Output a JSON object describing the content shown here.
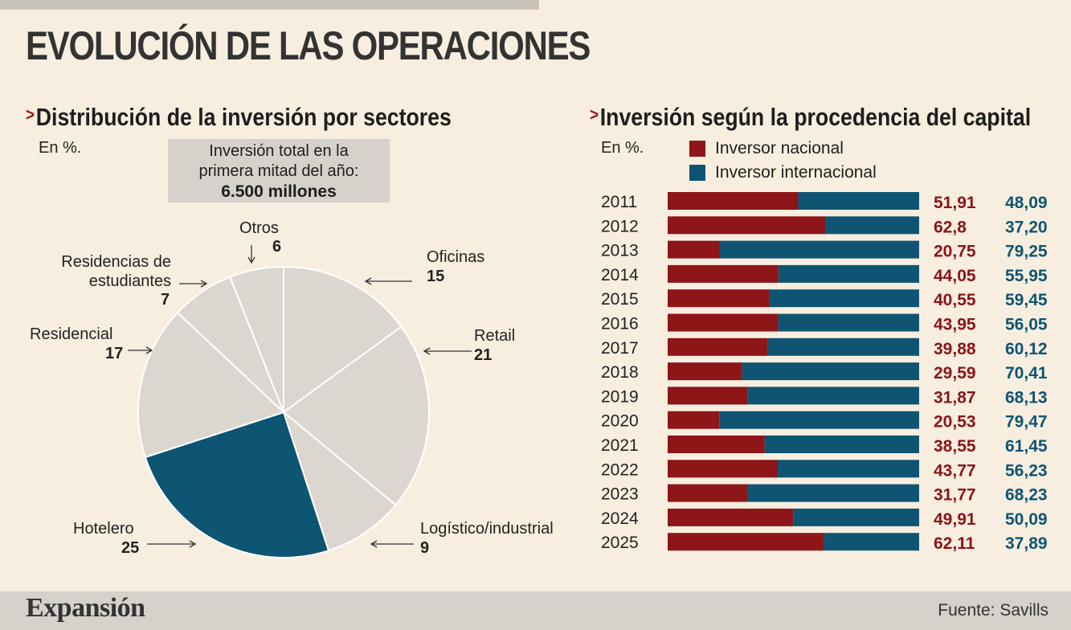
{
  "title": "EVOLUCIÓN DE LAS OPERACIONES",
  "colors": {
    "nacional": "#8e1518",
    "internacional": "#0f5573",
    "pie_default": "#dcd6d0",
    "pie_highlight": "#0d5572",
    "background": "#f8eee0"
  },
  "left": {
    "title": "Distribución de la inversión por sectores",
    "unit": "En %.",
    "total_line1": "Inversión total en la",
    "total_line2": "primera mitad del año:",
    "total_value": "6.500 millones"
  },
  "right": {
    "title": "Inversión según la procedencia del capital",
    "unit": "En %.",
    "legend_nacional": "Inversor nacional",
    "legend_internacional": "Inversor internacional"
  },
  "chart_data": [
    {
      "type": "pie",
      "title": "Distribución de la inversión por sectores",
      "slices": [
        {
          "label": "Oficinas",
          "value": 15
        },
        {
          "label": "Retail",
          "value": 21
        },
        {
          "label": "Logístico/industrial",
          "value": 9
        },
        {
          "label": "Hotelero",
          "value": 25,
          "highlight": true
        },
        {
          "label": "Residencial",
          "value": 17
        },
        {
          "label": "Residencias de estudiantes",
          "value": 7
        },
        {
          "label": "Otros",
          "value": 6
        }
      ]
    },
    {
      "type": "bar",
      "orientation": "horizontal",
      "stacked": true,
      "title": "Inversión según la procedencia del capital",
      "categories": [
        "2011",
        "2012",
        "2013",
        "2014",
        "2015",
        "2016",
        "2017",
        "2018",
        "2019",
        "2020",
        "2021",
        "2022",
        "2023",
        "2024",
        "2025"
      ],
      "series": [
        {
          "name": "Inversor nacional",
          "values": [
            51.91,
            62.8,
            20.75,
            44.05,
            40.55,
            43.95,
            39.88,
            29.59,
            31.87,
            20.53,
            38.55,
            43.77,
            31.77,
            49.91,
            62.11
          ],
          "labels": [
            "51,91",
            "62,8",
            "20,75",
            "44,05",
            "40,55",
            "43,95",
            "39,88",
            "29,59",
            "31,87",
            "20,53",
            "38,55",
            "43,77",
            "31,77",
            "49,91",
            "62,11"
          ]
        },
        {
          "name": "Inversor internacional",
          "values": [
            48.09,
            37.2,
            79.25,
            55.95,
            59.45,
            56.05,
            60.12,
            70.41,
            68.13,
            79.47,
            61.45,
            56.23,
            68.23,
            50.09,
            37.89
          ],
          "labels": [
            "48,09",
            "37,20",
            "79,25",
            "55,95",
            "59,45",
            "56,05",
            "60,12",
            "70,41",
            "68,13",
            "79,47",
            "61,45",
            "56,23",
            "68,23",
            "50,09",
            "37,89"
          ]
        }
      ],
      "xlim": [
        0,
        100
      ]
    }
  ],
  "footer": {
    "brand": "Expansión",
    "source": "Fuente: Savills"
  }
}
